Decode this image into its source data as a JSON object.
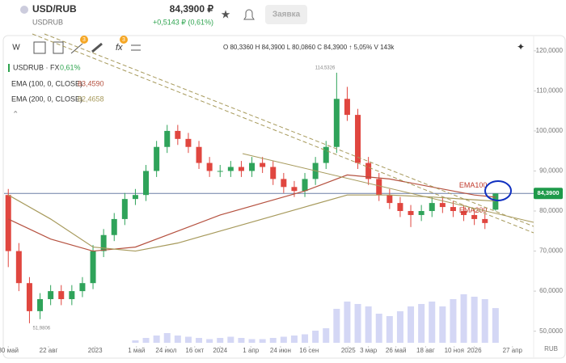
{
  "header": {
    "symbol": "USD/RUB",
    "ticker": "USDRUB",
    "price": "84,3900 ₽",
    "change": "+0,5143 ₽ (0,61%)",
    "button": "Заявка"
  },
  "toolbar": {
    "interval": "W",
    "badge_1": "3",
    "badge_2": "3"
  },
  "legend": {
    "instrument": "USDRUB · FX",
    "instrument_change": "0,61%",
    "ema100_label": "EMA (100, 0, CLOSE)",
    "ema100_value": "83,4590",
    "ema200_label": "EMA (200, 0, CLOSE)",
    "ema200_value": "82,4658",
    "ohlc": "O 80,3360 H 84,3900 L 80,0860 C 84,3900 ↑ 5,05% V 143k"
  },
  "chart_data": {
    "type": "candlestick",
    "currency": "RUB",
    "candles": [
      [
        84,
        85.5,
        66,
        70
      ],
      [
        70,
        72,
        60,
        62
      ],
      [
        62,
        63.5,
        51.98,
        55
      ],
      [
        55,
        59.5,
        53,
        58
      ],
      [
        58,
        61.5,
        56.5,
        60
      ],
      [
        60,
        61.5,
        56.5,
        58
      ],
      [
        58,
        61.5,
        56.5,
        60
      ],
      [
        60,
        63.5,
        58.5,
        62
      ],
      [
        62,
        71.5,
        60.5,
        70
      ],
      [
        70,
        75.5,
        68.5,
        74
      ],
      [
        74,
        79.5,
        72.5,
        78
      ],
      [
        78,
        84.5,
        76.5,
        83
      ],
      [
        83,
        85.5,
        81.5,
        84
      ],
      [
        84,
        91.5,
        82.5,
        90
      ],
      [
        90,
        97.5,
        88.5,
        96
      ],
      [
        96,
        101.5,
        94.5,
        100
      ],
      [
        100,
        101.5,
        96.5,
        98
      ],
      [
        98,
        99.5,
        94.5,
        96
      ],
      [
        96,
        97.5,
        90.5,
        92
      ],
      [
        92,
        93.5,
        88.5,
        90
      ],
      [
        90,
        91.5,
        88.5,
        90
      ],
      [
        90,
        92.5,
        88.5,
        91
      ],
      [
        91,
        92.5,
        88.5,
        90
      ],
      [
        90,
        93.5,
        88.5,
        92
      ],
      [
        92,
        93.5,
        89.5,
        91
      ],
      [
        91,
        92.5,
        86.5,
        88
      ],
      [
        88,
        89.5,
        84.5,
        86
      ],
      [
        86,
        87.5,
        83.5,
        85
      ],
      [
        85,
        89.5,
        83.5,
        88
      ],
      [
        88,
        93.5,
        86.5,
        92
      ],
      [
        92,
        97.5,
        90.5,
        96
      ],
      [
        96,
        114.53,
        94.5,
        108
      ],
      [
        108,
        111,
        102.5,
        104
      ],
      [
        104,
        105.5,
        90.5,
        92
      ],
      [
        92,
        93.5,
        86.5,
        88
      ],
      [
        88,
        89.5,
        82.5,
        84
      ],
      [
        84,
        85.5,
        80.5,
        82
      ],
      [
        82,
        83.5,
        78.5,
        80
      ],
      [
        80,
        81.5,
        76,
        79
      ],
      [
        79,
        81.5,
        77.5,
        80
      ],
      [
        80,
        83.5,
        78.5,
        82
      ],
      [
        82,
        83.5,
        79.5,
        81
      ],
      [
        81,
        82.5,
        78.5,
        80
      ],
      [
        80,
        81.5,
        77.5,
        79
      ],
      [
        79,
        80.5,
        76.5,
        78
      ],
      [
        78,
        79.5,
        75.5,
        77
      ],
      [
        80.336,
        84.39,
        80.086,
        84.39
      ]
    ],
    "volume": [
      0,
      0,
      0,
      0,
      0,
      0,
      0,
      0,
      0,
      0,
      0,
      0,
      10,
      20,
      30,
      40,
      30,
      25,
      20,
      15,
      20,
      25,
      20,
      15,
      15,
      20,
      25,
      30,
      35,
      50,
      60,
      140,
      170,
      160,
      150,
      120,
      110,
      130,
      150,
      160,
      170,
      150,
      180,
      200,
      190,
      180,
      143
    ],
    "ema": [
      {
        "name": "EMA100",
        "color": "#b5513f",
        "x": [
          0,
          4,
          8,
          12,
          16,
          20,
          24,
          28,
          32,
          36,
          40,
          44,
          46
        ],
        "values": [
          78,
          73,
          70,
          71,
          75,
          79,
          82,
          85,
          89,
          88,
          86,
          84,
          83.459
        ]
      },
      {
        "name": "EMA200",
        "color": "#a79a5c",
        "x": [
          0,
          4,
          8,
          12,
          16,
          20,
          24,
          28,
          32,
          36,
          40,
          44,
          46
        ],
        "values": [
          84,
          78,
          71,
          70,
          72,
          75,
          78,
          81,
          84,
          84,
          83.5,
          82.8,
          82.4658
        ]
      }
    ],
    "annotations": [
      {
        "value": 114.5326,
        "label": "114,5326",
        "index": 31
      },
      {
        "value": 51.9806,
        "label": "51,9806",
        "index": 2
      }
    ],
    "last_price": {
      "value": 84.39,
      "label": "84,3900"
    },
    "xlim": [
      -0.4,
      49.6
    ],
    "ylim": [
      46.9,
      123.6
    ],
    "xticks": [
      {
        "value": 0,
        "label": "30 май"
      },
      {
        "value": 3.8,
        "label": "22 авг"
      },
      {
        "value": 8.2,
        "label": "2023"
      },
      {
        "value": 12.1,
        "label": "1 май"
      },
      {
        "value": 14.9,
        "label": "24 июл"
      },
      {
        "value": 17.6,
        "label": "16 окт"
      },
      {
        "value": 20,
        "label": "2024"
      },
      {
        "value": 22.9,
        "label": "1 апр"
      },
      {
        "value": 25.7,
        "label": "24 июн"
      },
      {
        "value": 28.4,
        "label": "16 сен"
      },
      {
        "value": 32.1,
        "label": "2025"
      },
      {
        "value": 34,
        "label": "3 мар"
      },
      {
        "value": 36.6,
        "label": "26 май"
      },
      {
        "value": 39.4,
        "label": "18 авг"
      },
      {
        "value": 42.1,
        "label": "10 ноя"
      },
      {
        "value": 44,
        "label": "2026"
      },
      {
        "value": 47.6,
        "label": "27 апр"
      }
    ],
    "yticks": [
      {
        "value": 50,
        "label": "50,0000"
      },
      {
        "value": 60,
        "label": "60,0000"
      },
      {
        "value": 70,
        "label": "70,0000"
      },
      {
        "value": 80,
        "label": "80,0000"
      },
      {
        "value": 90,
        "label": "90,0000"
      },
      {
        "value": 100,
        "label": "100,0000"
      },
      {
        "value": 110,
        "label": "110,0000"
      },
      {
        "value": 120,
        "label": "120,0000"
      }
    ]
  }
}
